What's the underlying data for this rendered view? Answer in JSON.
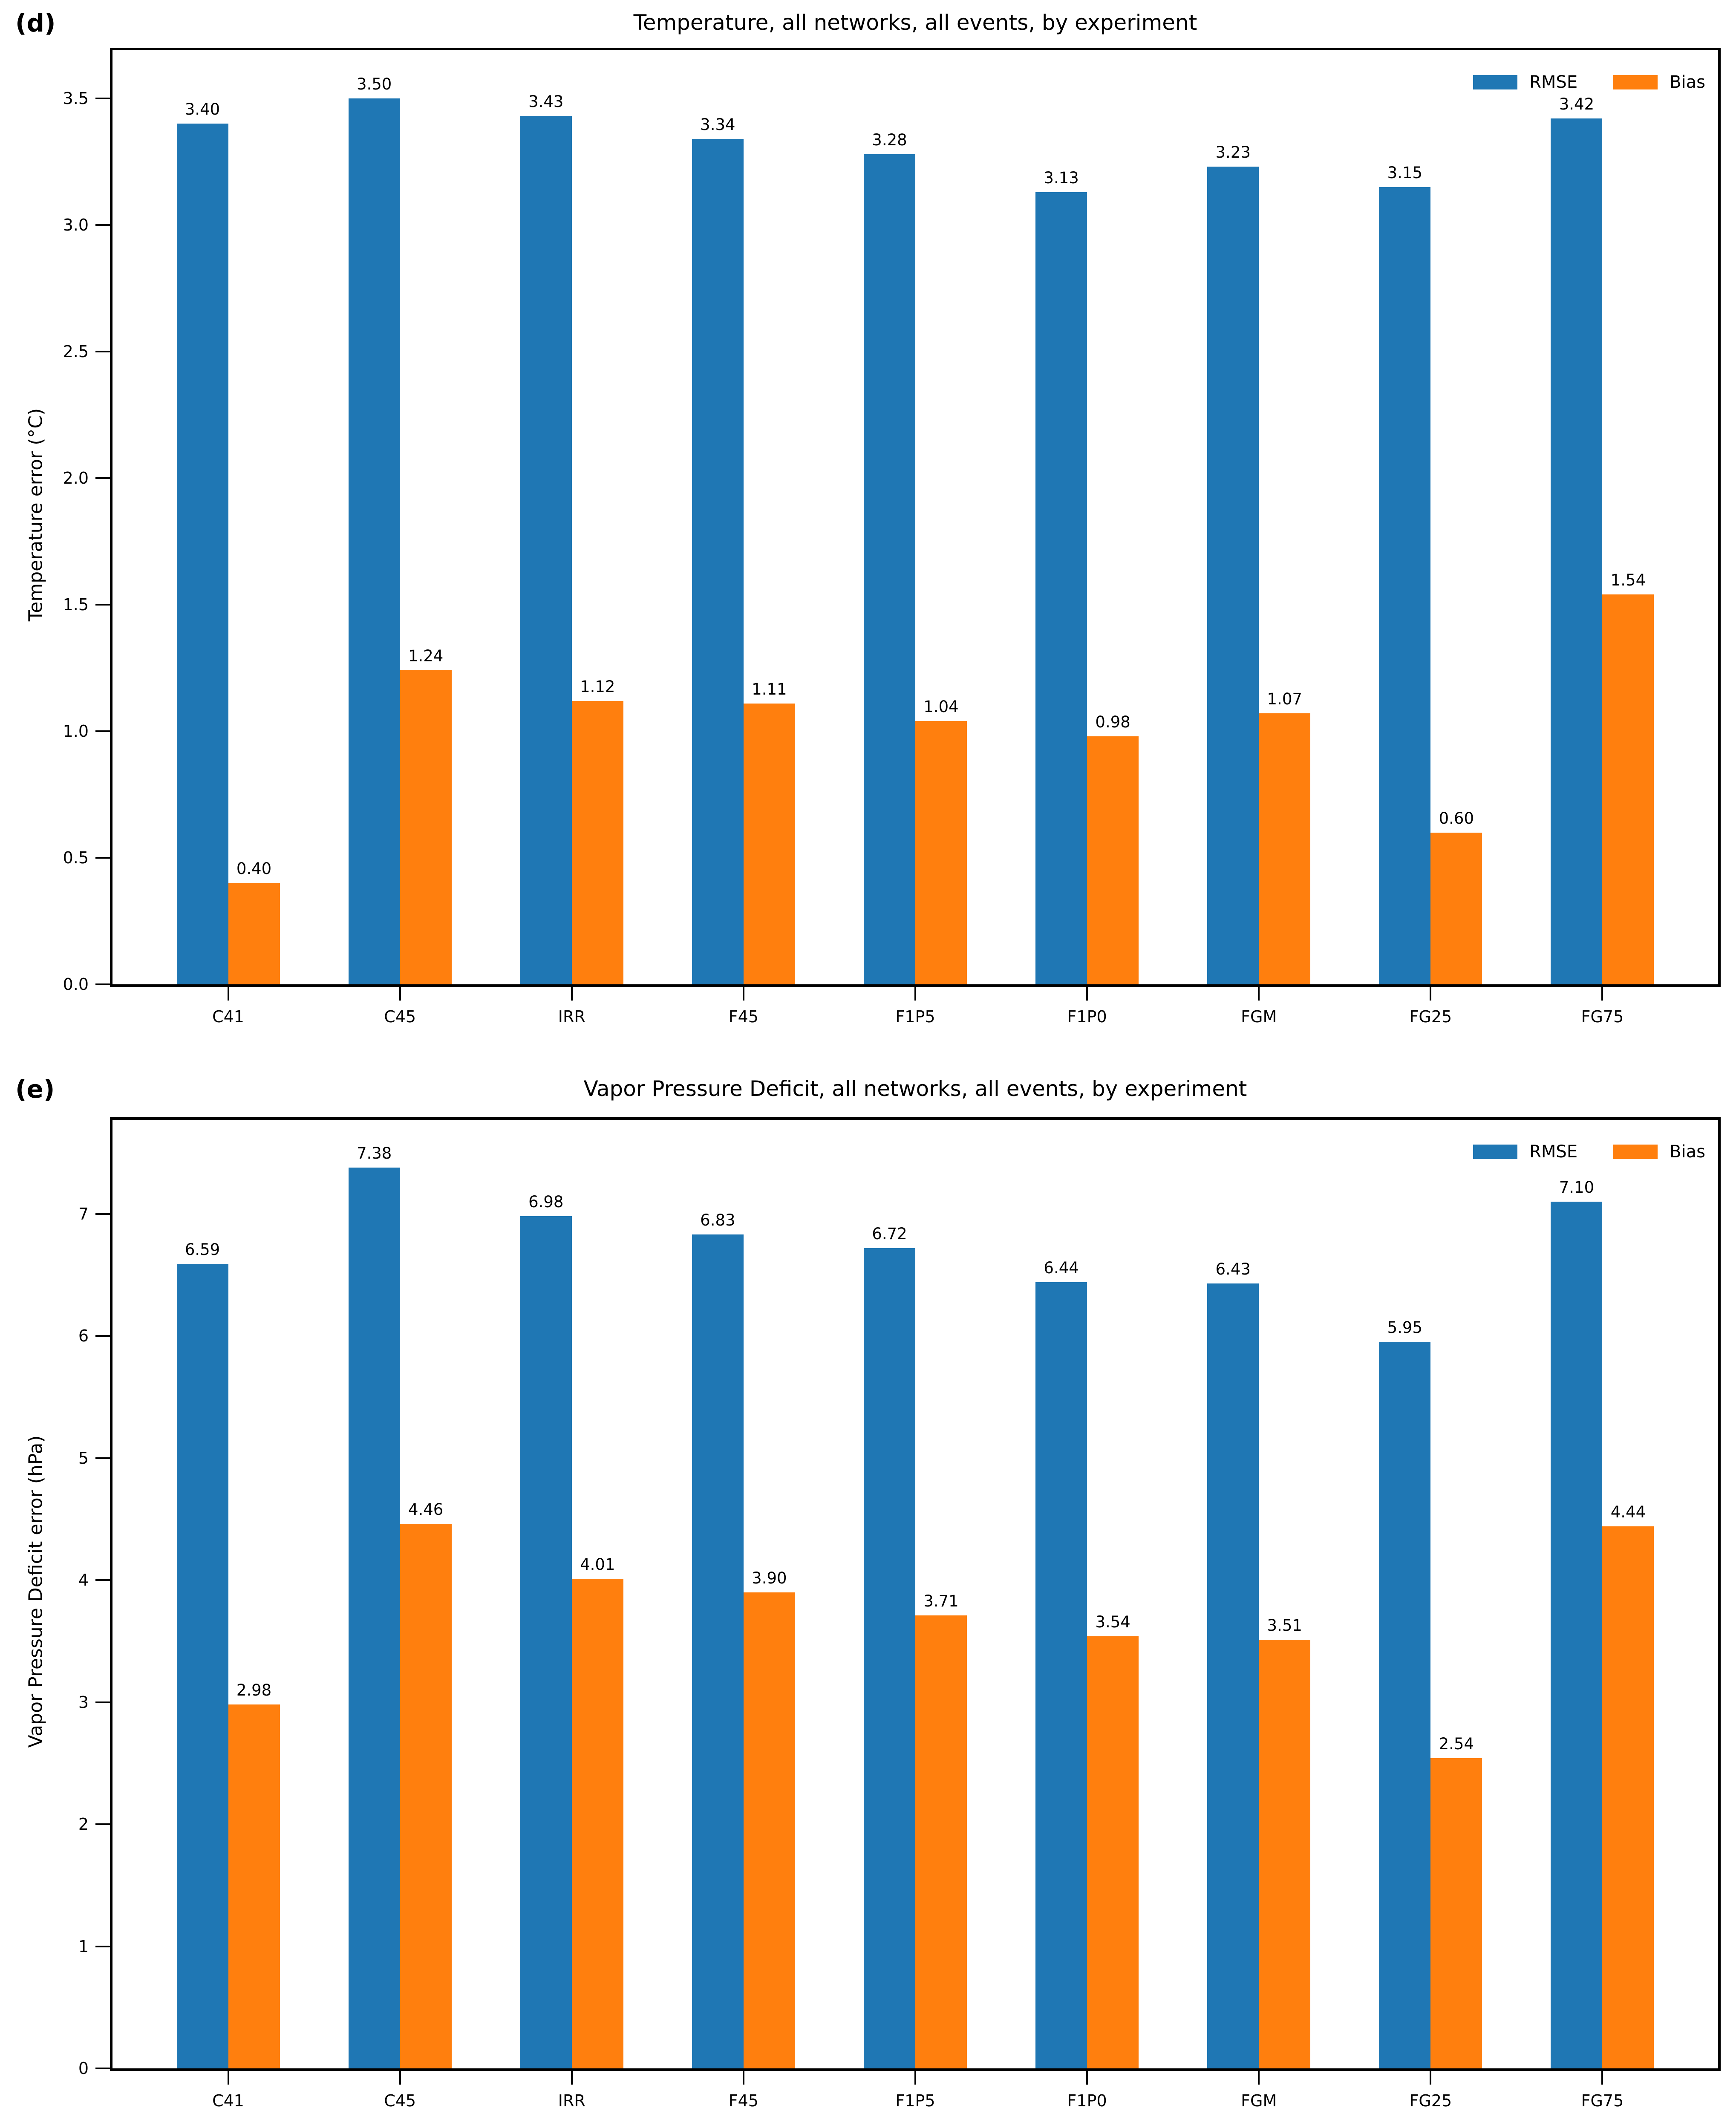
{
  "figure": {
    "background": "#ffffff",
    "rmse_color": "#1f77b4",
    "bias_color": "#ff7f0e"
  },
  "chart_data": [
    {
      "type": "bar",
      "panel_label": "(d)",
      "title": "Temperature, all networks, all events, by experiment",
      "ylabel": "Temperature error (°C)",
      "xlabel": "",
      "categories": [
        "C41",
        "C45",
        "IRR",
        "F45",
        "F1P5",
        "F1P0",
        "FGM",
        "FG25",
        "FG75"
      ],
      "series": [
        {
          "name": "RMSE",
          "color": "#1f77b4",
          "values": [
            3.4,
            3.5,
            3.43,
            3.34,
            3.28,
            3.13,
            3.23,
            3.15,
            3.42
          ]
        },
        {
          "name": "Bias",
          "color": "#ff7f0e",
          "values": [
            0.4,
            1.24,
            1.12,
            1.11,
            1.04,
            0.98,
            1.07,
            0.6,
            1.54
          ]
        }
      ],
      "bar_value_labels": true,
      "value_label_decimals": 2,
      "yticks": [
        "0.0",
        "0.5",
        "1.0",
        "1.5",
        "2.0",
        "2.5",
        "3.0",
        "3.5"
      ],
      "ytick_values": [
        0,
        0.5,
        1.0,
        1.5,
        2.0,
        2.5,
        3.0,
        3.5
      ],
      "ylim": [
        0,
        3.69
      ],
      "grid": false,
      "legend_position": "upper right"
    },
    {
      "type": "bar",
      "panel_label": "(e)",
      "title": "Vapor Pressure Deficit, all networks, all events, by experiment",
      "ylabel": "Vapor Pressure Deficit error (hPa)",
      "xlabel": "",
      "categories": [
        "C41",
        "C45",
        "IRR",
        "F45",
        "F1P5",
        "F1P0",
        "FGM",
        "FG25",
        "FG75"
      ],
      "series": [
        {
          "name": "RMSE",
          "color": "#1f77b4",
          "values": [
            6.59,
            7.38,
            6.98,
            6.83,
            6.72,
            6.44,
            6.43,
            5.95,
            7.1
          ]
        },
        {
          "name": "Bias",
          "color": "#ff7f0e",
          "values": [
            2.98,
            4.46,
            4.01,
            3.9,
            3.71,
            3.54,
            3.51,
            2.54,
            4.44
          ]
        }
      ],
      "bar_value_labels": true,
      "value_label_decimals": 2,
      "yticks": [
        "0",
        "1",
        "2",
        "3",
        "4",
        "5",
        "6",
        "7"
      ],
      "ytick_values": [
        0,
        1,
        2,
        3,
        4,
        5,
        6,
        7
      ],
      "ylim": [
        0,
        7.77
      ],
      "grid": false,
      "legend_position": "upper right"
    }
  ]
}
